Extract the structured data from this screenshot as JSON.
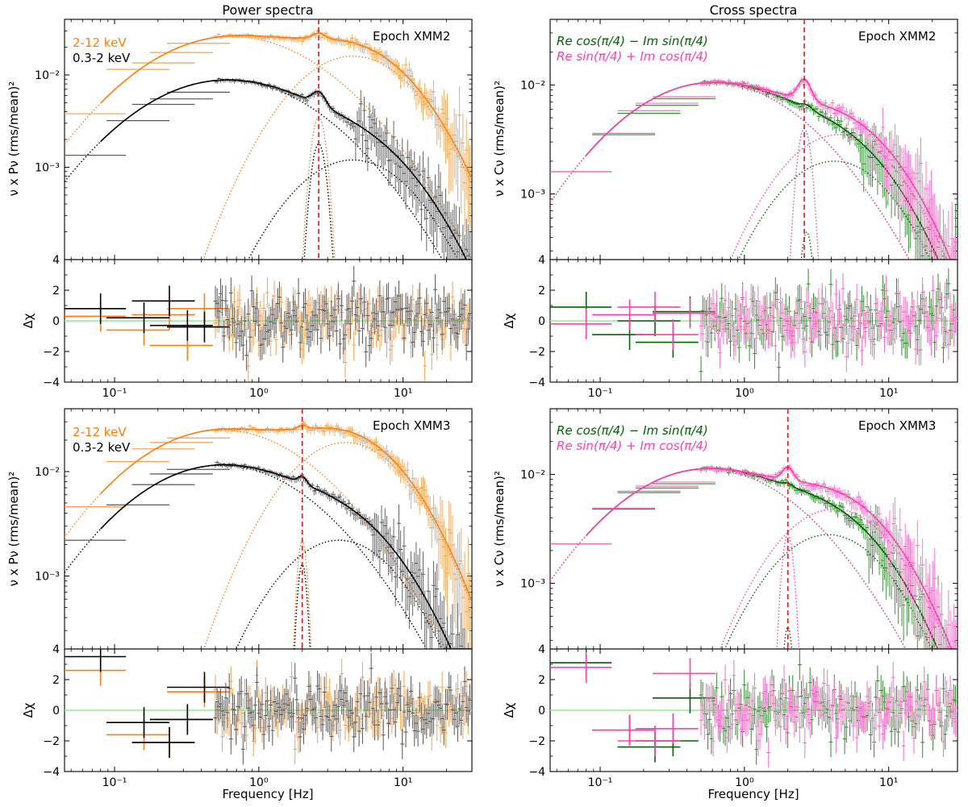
{
  "figure": {
    "column_titles": [
      "Power spectra",
      "Cross spectra"
    ],
    "x_label": "Frequency [Hz]",
    "residual_label": "Δχ"
  },
  "colors": {
    "hard": "#ff7f0e",
    "soft": "#000000",
    "re_minus": "#006400",
    "re_plus": "#ff3fae",
    "qpo_line": "#e8141b",
    "zero_line": "#90ee90",
    "hard_points": "#f5a14d",
    "soft_points": "#555555",
    "green_points": "#2e8b2e",
    "pink_points": "#ff69c4"
  },
  "chart_data": [
    {
      "id": "top-left",
      "type": "line",
      "column": "Power spectra",
      "epoch": "Epoch XMM2",
      "legend": [
        "2-12 keV",
        "0.3-2 keV"
      ],
      "ylabel": "ν x Pν (rms/mean)²",
      "xscale": "log",
      "xlim": [
        0.045,
        30
      ],
      "yscale": "log",
      "ylim": [
        0.0001,
        0.04
      ],
      "qpo_freq": 2.6,
      "series": [
        {
          "name": "2-12 keV",
          "fmin": 0.08,
          "comps": [
            {
              "n": 0.026,
              "nu0": 0.65,
              "w": 0.8
            },
            {
              "n": 0.0035,
              "nu0": 2.6,
              "w": 0.12
            },
            {
              "n": 0.016,
              "nu0": 4.5,
              "w": 0.45
            }
          ]
        },
        {
          "name": "0.3-2 keV",
          "fmin": 0.08,
          "comps": [
            {
              "n": 0.0088,
              "nu0": 0.6,
              "w": 0.85
            },
            {
              "n": 0.0018,
              "nu0": 2.6,
              "w": 0.12
            },
            {
              "n": 0.0012,
              "nu0": 4.5,
              "w": 0.45
            }
          ]
        }
      ],
      "low_bins": {
        "2-12 keV": [
          0.0038,
          0.0115,
          0.0135,
          0.0175,
          0.022
        ],
        "0.3-2 keV": [
          0.00135,
          0.0032,
          0.0048,
          0.0055,
          0.0065
        ]
      }
    },
    {
      "id": "top-right",
      "type": "line",
      "column": "Cross spectra",
      "epoch": "Epoch XMM2",
      "legend": [
        "Re cos(π/4) − Im sin(π/4)",
        "Re sin(π/4) + Im cos(π/4)"
      ],
      "ylabel": "ν x Cν (rms/mean)²",
      "xscale": "log",
      "xlim": [
        0.045,
        30
      ],
      "yscale": "log",
      "ylim": [
        0.00025,
        0.04
      ],
      "qpo_freq": 2.6,
      "series": [
        {
          "name": "Re cos(π/4) − Im sin(π/4)",
          "fmin": 0.08,
          "comps": [
            {
              "n": 0.0105,
              "nu0": 0.6,
              "w": 0.85
            },
            {
              "n": 0.00045,
              "nu0": 2.7,
              "w": 0.1
            },
            {
              "n": 0.002,
              "nu0": 4.2,
              "w": 0.45
            }
          ]
        },
        {
          "name": "Re sin(π/4) + Im cos(π/4)",
          "fmin": 0.08,
          "comps": [
            {
              "n": 0.0105,
              "nu0": 0.6,
              "w": 0.85
            },
            {
              "n": 0.004,
              "nu0": 2.6,
              "w": 0.12
            },
            {
              "n": 0.0035,
              "nu0": 4.5,
              "w": 0.5
            }
          ]
        }
      ],
      "low_bins": {
        "Re cos(π/4) − Im sin(π/4)": [
          0.0016,
          0.0035,
          0.0055,
          0.0065,
          0.0075
        ],
        "Re sin(π/4) + Im cos(π/4)": [
          0.0016,
          0.0036,
          0.0058,
          0.0068,
          0.0078
        ]
      }
    },
    {
      "id": "bottom-left",
      "type": "line",
      "column": "Power spectra",
      "epoch": "Epoch XMM3",
      "legend": [
        "2-12 keV",
        "0.3-2 keV"
      ],
      "ylabel": "ν x Pν (rms/mean)²",
      "xscale": "log",
      "xlim": [
        0.045,
        30
      ],
      "yscale": "log",
      "ylim": [
        0.0002,
        0.04
      ],
      "qpo_freq": 2.0,
      "series": [
        {
          "name": "2-12 keV",
          "fmin": 0.08,
          "comps": [
            {
              "n": 0.025,
              "nu0": 0.55,
              "w": 0.8
            },
            {
              "n": 0.0022,
              "nu0": 2.0,
              "w": 0.08
            },
            {
              "n": 0.019,
              "nu0": 4.0,
              "w": 0.55
            }
          ]
        },
        {
          "name": "0.3-2 keV",
          "fmin": 0.08,
          "comps": [
            {
              "n": 0.0115,
              "nu0": 0.55,
              "w": 0.85
            },
            {
              "n": 0.0013,
              "nu0": 2.0,
              "w": 0.08
            },
            {
              "n": 0.0022,
              "nu0": 3.6,
              "w": 0.5
            }
          ]
        }
      ],
      "low_bins": {
        "2-12 keV": [
          0.0046,
          0.0125,
          0.0165,
          0.019,
          0.021
        ],
        "0.3-2 keV": [
          0.0022,
          0.0048,
          0.0075,
          0.0095,
          0.0105
        ]
      }
    },
    {
      "id": "bottom-right",
      "type": "line",
      "column": "Cross spectra",
      "epoch": "Epoch XMM3",
      "legend": [
        "Re cos(π/4) − Im sin(π/4)",
        "Re sin(π/4) + Im cos(π/4)"
      ],
      "ylabel": "ν x Cν (rms/mean)²",
      "xscale": "log",
      "xlim": [
        0.045,
        30
      ],
      "yscale": "log",
      "ylim": [
        0.00025,
        0.04
      ],
      "qpo_freq": 2.0,
      "series": [
        {
          "name": "Re cos(π/4) − Im sin(π/4)",
          "fmin": 0.08,
          "comps": [
            {
              "n": 0.0112,
              "nu0": 0.55,
              "w": 0.8
            },
            {
              "n": 0.0004,
              "nu0": 2.0,
              "w": 0.08
            },
            {
              "n": 0.0028,
              "nu0": 3.8,
              "w": 0.5
            }
          ]
        },
        {
          "name": "Re sin(π/4) + Im cos(π/4)",
          "fmin": 0.08,
          "comps": [
            {
              "n": 0.0112,
              "nu0": 0.55,
              "w": 0.8
            },
            {
              "n": 0.0028,
              "nu0": 2.0,
              "w": 0.1
            },
            {
              "n": 0.0048,
              "nu0": 4.2,
              "w": 0.5
            }
          ]
        }
      ],
      "low_bins": {
        "Re cos(π/4) − Im sin(π/4)": [
          0.0023,
          0.0048,
          0.0068,
          0.0075,
          0.0082
        ],
        "Re sin(π/4) + Im cos(π/4)": [
          0.0023,
          0.0049,
          0.007,
          0.0078,
          0.0085
        ]
      }
    },
    {
      "id": "res-top-left",
      "type": "scatter",
      "ylabel": "Δχ",
      "ylim": [
        -4,
        4
      ],
      "yticks": [
        "−4",
        "−2",
        "0",
        "2"
      ],
      "top_label": "4",
      "series": [
        "2-12 keV",
        "0.3-2 keV"
      ],
      "low_res": {
        "2-12 keV": [
          0.3,
          -0.6,
          0.4,
          -1.6,
          0.8
        ],
        "0.3-2 keV": [
          0.8,
          0.2,
          1.3,
          -0.3,
          -0.4
        ]
      }
    },
    {
      "id": "res-top-right",
      "type": "scatter",
      "ylabel": "Δχ",
      "ylim": [
        -4,
        4
      ],
      "yticks": [
        "−4",
        "−2",
        "0",
        "2"
      ],
      "top_label": "4",
      "series": [
        "Re cos(π/4) − Im sin(π/4)",
        "Re sin(π/4) + Im cos(π/4)"
      ],
      "low_res": {
        "Re cos(π/4) − Im sin(π/4)": [
          0.9,
          -0.9,
          0.0,
          -1.4,
          0.6
        ],
        "Re sin(π/4) + Im cos(π/4)": [
          -0.2,
          0.4,
          0.9,
          -0.9,
          0.5
        ]
      }
    },
    {
      "id": "res-bottom-left",
      "type": "scatter",
      "ylabel": "Δχ",
      "ylim": [
        -4,
        4
      ],
      "yticks": [
        "−4",
        "−2",
        "0",
        "2"
      ],
      "top_label": "4",
      "series": [
        "2-12 keV",
        "0.3-2 keV"
      ],
      "low_res": {
        "2-12 keV": [
          2.6,
          -1.6,
          -2.1,
          -0.6,
          1.2
        ],
        "0.3-2 keV": [
          3.5,
          -0.8,
          -2.1,
          -0.6,
          1.5
        ]
      }
    },
    {
      "id": "res-bottom-right",
      "type": "scatter",
      "ylabel": "Δχ",
      "ylim": [
        -4,
        4
      ],
      "yticks": [
        "−4",
        "−2",
        "0",
        "2"
      ],
      "top_label": "4",
      "series": [
        "Re cos(π/4) − Im sin(π/4)",
        "Re sin(π/4) + Im cos(π/4)"
      ],
      "low_res": {
        "Re cos(π/4) − Im sin(π/4)": [
          3.1,
          -1.3,
          -2.4,
          -2.0,
          0.8
        ],
        "Re sin(π/4) + Im cos(π/4)": [
          2.8,
          -1.3,
          -2.0,
          -1.2,
          2.4
        ]
      }
    }
  ]
}
